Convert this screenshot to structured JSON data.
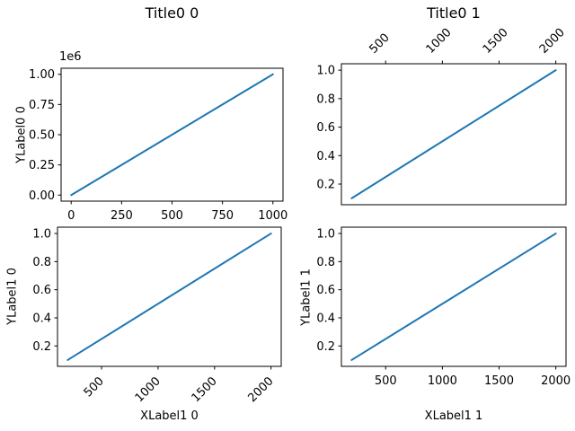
{
  "colors": {
    "line": "#1f77b4",
    "axes": "#000000",
    "background": "#ffffff"
  },
  "chart_data": [
    {
      "id": "row0-col0",
      "type": "line",
      "title": "Title0 0",
      "xlabel": "",
      "ylabel": "YLabel0 0",
      "y_offset_text": "1e6",
      "series": [
        {
          "name": "line",
          "color": "#1f77b4",
          "x": [
            0,
            1000
          ],
          "y": [
            0,
            1000000
          ]
        }
      ],
      "xlim": [
        -50,
        1050
      ],
      "ylim": [
        -50000,
        1050000
      ],
      "xticks": {
        "side": "bottom",
        "rotation": 0,
        "values": [
          0,
          250,
          500,
          750,
          1000
        ],
        "labels": [
          "0",
          "250",
          "500",
          "750",
          "1000"
        ]
      },
      "yticks": {
        "side": "left",
        "values": [
          0,
          250000,
          500000,
          750000,
          1000000
        ],
        "labels": [
          "0.00",
          "0.25",
          "0.50",
          "0.75",
          "1.00"
        ]
      },
      "grid": false,
      "legend": null
    },
    {
      "id": "row0-col1",
      "type": "line",
      "title": "Title0 1",
      "xlabel": "",
      "ylabel": "",
      "y_offset_text": "",
      "series": [
        {
          "name": "line",
          "color": "#1f77b4",
          "x": [
            200,
            2000
          ],
          "y": [
            0.1,
            1.0
          ]
        }
      ],
      "xlim": [
        110,
        2090
      ],
      "ylim": [
        0.055,
        1.045
      ],
      "xticks": {
        "side": "top",
        "rotation": 45,
        "values": [
          500,
          1000,
          1500,
          2000
        ],
        "labels": [
          "500",
          "1000",
          "1500",
          "2000"
        ]
      },
      "yticks": {
        "side": "left",
        "values": [
          0.2,
          0.4,
          0.6,
          0.8,
          1.0
        ],
        "labels": [
          "0.2",
          "0.4",
          "0.6",
          "0.8",
          "1.0"
        ]
      },
      "grid": false,
      "legend": null
    },
    {
      "id": "row1-col0",
      "type": "line",
      "title": "",
      "xlabel": "XLabel1 0",
      "ylabel": "YLabel1 0",
      "y_offset_text": "",
      "series": [
        {
          "name": "line",
          "color": "#1f77b4",
          "x": [
            200,
            2000
          ],
          "y": [
            0.1,
            1.0
          ]
        }
      ],
      "xlim": [
        110,
        2090
      ],
      "ylim": [
        0.055,
        1.045
      ],
      "xticks": {
        "side": "bottom",
        "rotation": 45,
        "values": [
          500,
          1000,
          1500,
          2000
        ],
        "labels": [
          "500",
          "1000",
          "1500",
          "2000"
        ]
      },
      "yticks": {
        "side": "left",
        "values": [
          0.2,
          0.4,
          0.6,
          0.8,
          1.0
        ],
        "labels": [
          "0.2",
          "0.4",
          "0.6",
          "0.8",
          "1.0"
        ]
      },
      "grid": false,
      "legend": null
    },
    {
      "id": "row1-col1",
      "type": "line",
      "title": "",
      "xlabel": "XLabel1 1",
      "ylabel": "YLabel1 1",
      "y_offset_text": "",
      "series": [
        {
          "name": "line",
          "color": "#1f77b4",
          "x": [
            200,
            2000
          ],
          "y": [
            0.1,
            1.0
          ]
        }
      ],
      "xlim": [
        110,
        2090
      ],
      "ylim": [
        0.055,
        1.045
      ],
      "xticks": {
        "side": "bottom",
        "rotation": 0,
        "values": [
          500,
          1000,
          1500,
          2000
        ],
        "labels": [
          "500",
          "1000",
          "1500",
          "2000"
        ]
      },
      "yticks": {
        "side": "left",
        "values": [
          0.2,
          0.4,
          0.6,
          0.8,
          1.0
        ],
        "labels": [
          "0.2",
          "0.4",
          "0.6",
          "0.8",
          "1.0"
        ]
      },
      "grid": false,
      "legend": null
    }
  ]
}
